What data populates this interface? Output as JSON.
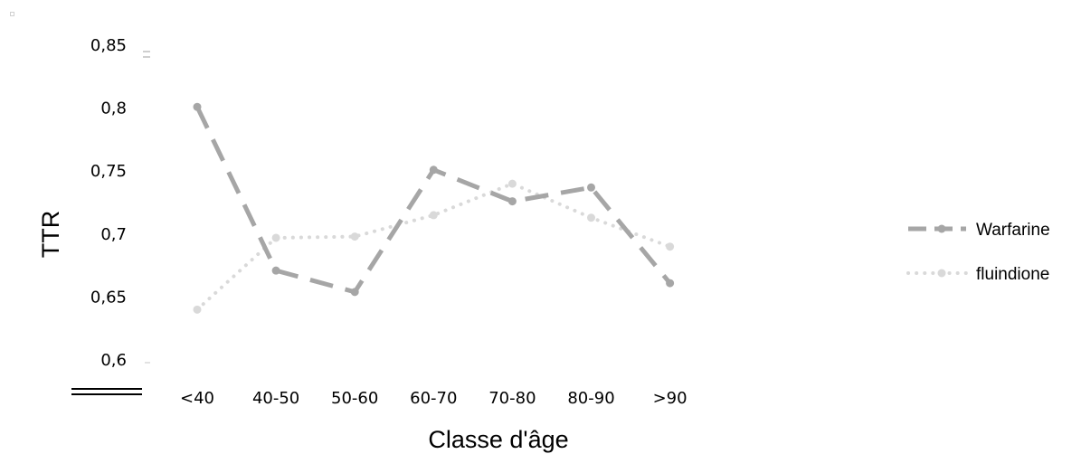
{
  "chart_data": {
    "type": "line",
    "title": "",
    "xlabel": "Classe d'âge",
    "ylabel": "TTR",
    "categories": [
      "<40",
      "40-50",
      "50-60",
      "60-70",
      "70-80",
      "80-90",
      ">90"
    ],
    "ylim": [
      0.6,
      0.85
    ],
    "yticks": [
      "0,85",
      "0,8",
      "0,75",
      "0,7",
      "0,65",
      "0,6"
    ],
    "grid": false,
    "legend_position": "right",
    "series": [
      {
        "name": "Warfarine",
        "values": [
          0.801,
          0.671,
          0.654,
          0.751,
          0.726,
          0.737,
          0.661
        ],
        "color": "#a6a6a6",
        "style": "dashed"
      },
      {
        "name": "fluindione",
        "values": [
          0.64,
          0.697,
          0.698,
          0.715,
          0.74,
          0.713,
          0.69
        ],
        "color": "#d9d9d9",
        "style": "dotted"
      }
    ]
  }
}
